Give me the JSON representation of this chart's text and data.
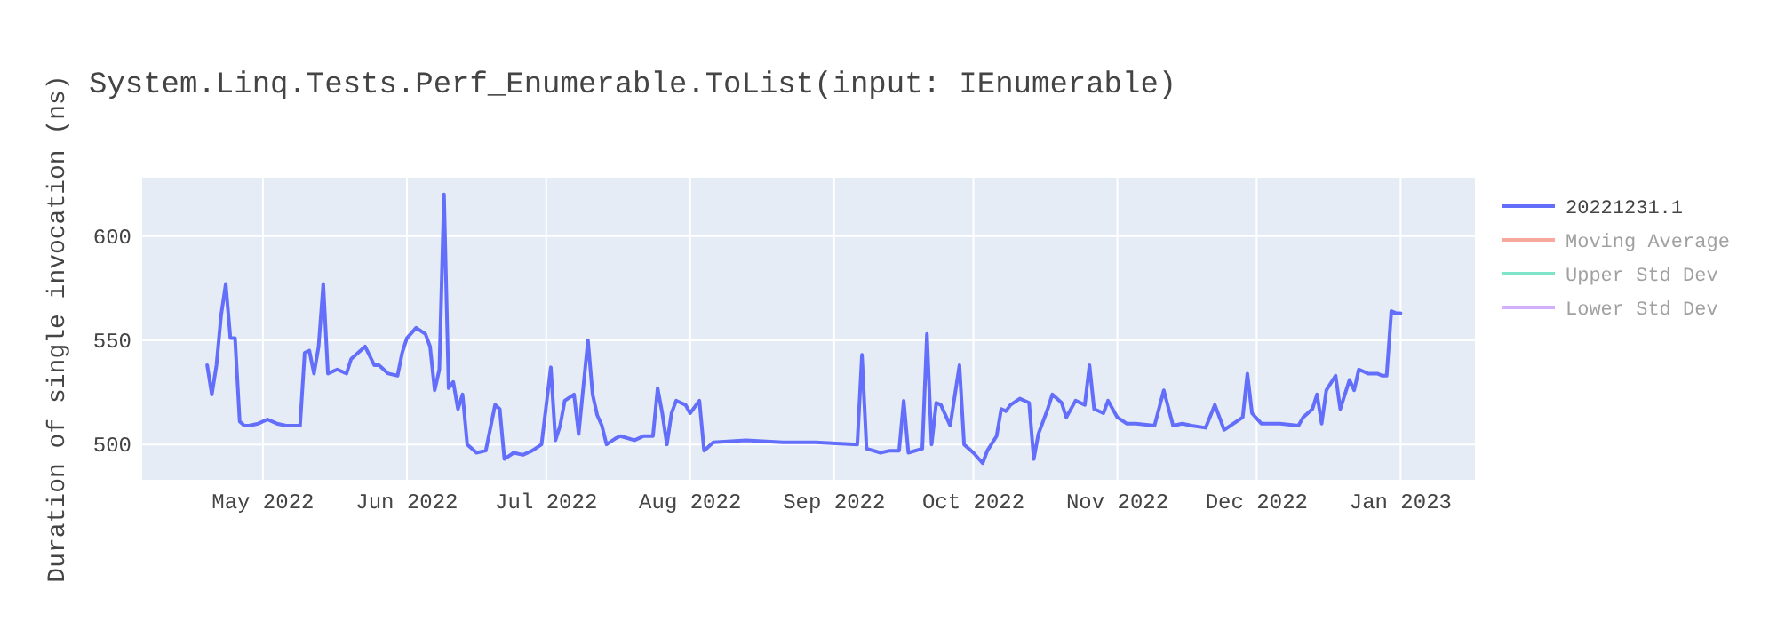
{
  "chart_data": {
    "type": "line",
    "title": "System.Linq.Tests.Perf_Enumerable.ToList(input: IEnumerable)",
    "ylabel": "Duration of single invocation (ns)",
    "x": [
      "2022-04-19",
      "2022-04-20",
      "2022-04-21",
      "2022-04-22",
      "2022-04-23",
      "2022-04-24",
      "2022-04-25",
      "2022-04-26",
      "2022-04-27",
      "2022-04-28",
      "2022-04-30",
      "2022-05-02",
      "2022-05-04",
      "2022-05-06",
      "2022-05-09",
      "2022-05-10",
      "2022-05-11",
      "2022-05-12",
      "2022-05-13",
      "2022-05-14",
      "2022-05-15",
      "2022-05-17",
      "2022-05-19",
      "2022-05-20",
      "2022-05-23",
      "2022-05-25",
      "2022-05-26",
      "2022-05-28",
      "2022-05-30",
      "2022-05-31",
      "2022-06-01",
      "2022-06-03",
      "2022-06-05",
      "2022-06-06",
      "2022-06-07",
      "2022-06-08",
      "2022-06-09",
      "2022-06-10",
      "2022-06-11",
      "2022-06-12",
      "2022-06-13",
      "2022-06-14",
      "2022-06-16",
      "2022-06-18",
      "2022-06-20",
      "2022-06-21",
      "2022-06-22",
      "2022-06-24",
      "2022-06-26",
      "2022-06-28",
      "2022-06-30",
      "2022-07-02",
      "2022-07-03",
      "2022-07-04",
      "2022-07-05",
      "2022-07-07",
      "2022-07-08",
      "2022-07-10",
      "2022-07-11",
      "2022-07-12",
      "2022-07-13",
      "2022-07-14",
      "2022-07-16",
      "2022-07-17",
      "2022-07-20",
      "2022-07-22",
      "2022-07-24",
      "2022-07-25",
      "2022-07-26",
      "2022-07-27",
      "2022-07-28",
      "2022-07-29",
      "2022-07-31",
      "2022-08-01",
      "2022-08-03",
      "2022-08-04",
      "2022-08-06",
      "2022-08-13",
      "2022-08-21",
      "2022-08-28",
      "2022-09-06",
      "2022-09-07",
      "2022-09-08",
      "2022-09-11",
      "2022-09-13",
      "2022-09-15",
      "2022-09-16",
      "2022-09-17",
      "2022-09-20",
      "2022-09-21",
      "2022-09-22",
      "2022-09-23",
      "2022-09-24",
      "2022-09-26",
      "2022-09-28",
      "2022-09-29",
      "2022-10-01",
      "2022-10-03",
      "2022-10-04",
      "2022-10-06",
      "2022-10-07",
      "2022-10-08",
      "2022-10-09",
      "2022-10-11",
      "2022-10-13",
      "2022-10-14",
      "2022-10-15",
      "2022-10-17",
      "2022-10-18",
      "2022-10-20",
      "2022-10-21",
      "2022-10-23",
      "2022-10-25",
      "2022-10-26",
      "2022-10-27",
      "2022-10-29",
      "2022-10-30",
      "2022-11-01",
      "2022-11-03",
      "2022-11-05",
      "2022-11-09",
      "2022-11-11",
      "2022-11-13",
      "2022-11-15",
      "2022-11-17",
      "2022-11-20",
      "2022-11-22",
      "2022-11-24",
      "2022-11-28",
      "2022-11-29",
      "2022-11-30",
      "2022-12-02",
      "2022-12-06",
      "2022-12-10",
      "2022-12-11",
      "2022-12-13",
      "2022-12-14",
      "2022-12-15",
      "2022-12-16",
      "2022-12-18",
      "2022-12-19",
      "2022-12-21",
      "2022-12-22",
      "2022-12-23",
      "2022-12-25",
      "2022-12-27",
      "2022-12-28",
      "2022-12-29",
      "2022-12-30",
      "2022-12-31",
      "2023-01-01"
    ],
    "series": [
      {
        "name": "20221231.1",
        "color": "#636efa",
        "values": [
          538,
          524,
          538,
          562,
          577,
          551,
          551,
          511,
          509,
          509,
          510,
          512,
          510,
          509,
          509,
          544,
          545,
          534,
          547,
          577,
          534,
          536,
          534,
          541,
          547,
          538,
          538,
          534,
          533,
          544,
          551,
          556,
          553,
          547,
          526,
          536,
          620,
          527,
          530,
          517,
          524,
          500,
          496,
          497,
          519,
          517,
          493,
          496,
          495,
          497,
          500,
          537,
          502,
          509,
          521,
          524,
          505,
          550,
          524,
          514,
          509,
          500,
          503,
          504,
          502,
          504,
          504,
          527,
          515,
          500,
          515,
          521,
          519,
          515,
          521,
          497,
          501,
          502,
          501,
          501,
          500,
          543,
          498,
          496,
          497,
          497,
          521,
          496,
          498,
          553,
          500,
          520,
          519,
          509,
          538,
          500,
          496,
          491,
          497,
          504,
          517,
          516,
          519,
          522,
          520,
          493,
          505,
          517,
          524,
          520,
          513,
          521,
          519,
          538,
          517,
          515,
          521,
          513,
          510,
          510,
          509,
          526,
          509,
          510,
          509,
          508,
          519,
          507,
          513,
          534,
          515,
          510,
          510,
          509,
          513,
          517,
          524,
          510,
          526,
          533,
          517,
          531,
          526,
          536,
          534,
          534,
          533,
          533,
          564,
          563,
          563
        ]
      },
      {
        "name": "Moving Average",
        "color": "#ef553b",
        "values": [
          null,
          null,
          null,
          null,
          null,
          null,
          null,
          null,
          null,
          null,
          null,
          null,
          null,
          null,
          null,
          null,
          null,
          null,
          null,
          null,
          null,
          null,
          null,
          null,
          null,
          null,
          null,
          null,
          null,
          null,
          null,
          null,
          null,
          null,
          null,
          null,
          null,
          null,
          null,
          null,
          null,
          null,
          null,
          null,
          null,
          null,
          null,
          null,
          null,
          null,
          null,
          null,
          null,
          null,
          null,
          null,
          null,
          null,
          null,
          null,
          null,
          null,
          null,
          null,
          null,
          null,
          null,
          null,
          null,
          null,
          null,
          null,
          null,
          null,
          null,
          null,
          null,
          null,
          null,
          null,
          null,
          null,
          null,
          null,
          null,
          null,
          null,
          null,
          null,
          null,
          null,
          null,
          null,
          null,
          null,
          null,
          null,
          null,
          null,
          null,
          null,
          null,
          null,
          null,
          null,
          null,
          null,
          null,
          null,
          null,
          null,
          null,
          null,
          null,
          null,
          null,
          null,
          null,
          null,
          null,
          null,
          null,
          null,
          null,
          null,
          null,
          null,
          null,
          null,
          null,
          null,
          null,
          null,
          null,
          null,
          null,
          null,
          null,
          null,
          null,
          null,
          null,
          null,
          null,
          null,
          null,
          null,
          null,
          null,
          null,
          null
        ]
      },
      {
        "name": "Upper Std Dev",
        "color": "#00cc96",
        "values": [
          null,
          null,
          null,
          null,
          null,
          null,
          null,
          null,
          null,
          null,
          null,
          null,
          null,
          null,
          null,
          null,
          null,
          null,
          null,
          null,
          null,
          null,
          null,
          null,
          null,
          null,
          null,
          null,
          null,
          null,
          null,
          null,
          null,
          null,
          null,
          null,
          null,
          null,
          null,
          null,
          null,
          null,
          null,
          null,
          null,
          null,
          null,
          null,
          null,
          null,
          null,
          null,
          null,
          null,
          null,
          null,
          null,
          null,
          null,
          null,
          null,
          null,
          null,
          null,
          null,
          null,
          null,
          null,
          null,
          null,
          null,
          null,
          null,
          null,
          null,
          null,
          null,
          null,
          null,
          null,
          null,
          null,
          null,
          null,
          null,
          null,
          null,
          null,
          null,
          null,
          null,
          null,
          null,
          null,
          null,
          null,
          null,
          null,
          null,
          null,
          null,
          null,
          null,
          null,
          null,
          null,
          null,
          null,
          null,
          null,
          null,
          null,
          null,
          null,
          null,
          null,
          null,
          null,
          null,
          null,
          null,
          null,
          null,
          null,
          null,
          null,
          null,
          null,
          null,
          null,
          null,
          null,
          null,
          null,
          null,
          null,
          null,
          null,
          null,
          null,
          null,
          null,
          null,
          null,
          null,
          null,
          null,
          null,
          null,
          null,
          null
        ]
      },
      {
        "name": "Lower Std Dev",
        "color": "#ab63fa",
        "values": [
          null,
          null,
          null,
          null,
          null,
          null,
          null,
          null,
          null,
          null,
          null,
          null,
          null,
          null,
          null,
          null,
          null,
          null,
          null,
          null,
          null,
          null,
          null,
          null,
          null,
          null,
          null,
          null,
          null,
          null,
          null,
          null,
          null,
          null,
          null,
          null,
          null,
          null,
          null,
          null,
          null,
          null,
          null,
          null,
          null,
          null,
          null,
          null,
          null,
          null,
          null,
          null,
          null,
          null,
          null,
          null,
          null,
          null,
          null,
          null,
          null,
          null,
          null,
          null,
          null,
          null,
          null,
          null,
          null,
          null,
          null,
          null,
          null,
          null,
          null,
          null,
          null,
          null,
          null,
          null,
          null,
          null,
          null,
          null,
          null,
          null,
          null,
          null,
          null,
          null,
          null,
          null,
          null,
          null,
          null,
          null,
          null,
          null,
          null,
          null,
          null,
          null,
          null,
          null,
          null,
          null,
          null,
          null,
          null,
          null,
          null,
          null,
          null,
          null,
          null,
          null,
          null,
          null,
          null,
          null,
          null,
          null,
          null,
          null,
          null,
          null,
          null,
          null,
          null,
          null,
          null,
          null,
          null,
          null,
          null,
          null,
          null,
          null,
          null,
          null,
          null,
          null,
          null,
          null,
          null,
          null,
          null,
          null,
          null,
          null,
          null
        ]
      }
    ],
    "xlim": [
      "2022-04-05",
      "2023-01-17"
    ],
    "xticks": [
      {
        "value": "2022-05-01",
        "label": "May 2022"
      },
      {
        "value": "2022-06-01",
        "label": "Jun 2022"
      },
      {
        "value": "2022-07-01",
        "label": "Jul 2022"
      },
      {
        "value": "2022-08-01",
        "label": "Aug 2022"
      },
      {
        "value": "2022-09-01",
        "label": "Sep 2022"
      },
      {
        "value": "2022-10-01",
        "label": "Oct 2022"
      },
      {
        "value": "2022-11-01",
        "label": "Nov 2022"
      },
      {
        "value": "2022-12-01",
        "label": "Dec 2022"
      },
      {
        "value": "2023-01-01",
        "label": "Jan 2023"
      }
    ],
    "ylim": [
      483,
      628
    ],
    "yticks": [
      500,
      550,
      600
    ],
    "grid": true,
    "legend": "right",
    "line_style": "solid",
    "marker": "none"
  }
}
